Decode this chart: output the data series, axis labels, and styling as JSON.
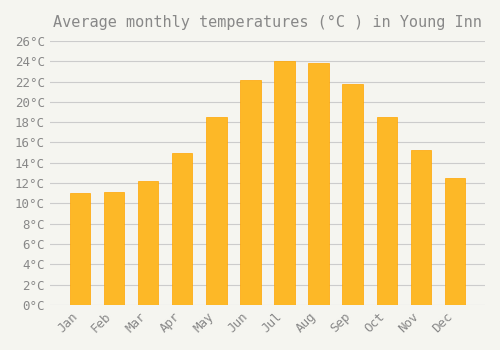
{
  "title": "Average monthly temperatures (°C ) in Young Inn",
  "months": [
    "Jan",
    "Feb",
    "Mar",
    "Apr",
    "May",
    "Jun",
    "Jul",
    "Aug",
    "Sep",
    "Oct",
    "Nov",
    "Dec"
  ],
  "values": [
    11.0,
    11.1,
    12.2,
    15.0,
    18.5,
    22.2,
    24.0,
    23.8,
    21.8,
    18.5,
    15.3,
    12.5
  ],
  "bar_color": "#FDB827",
  "bar_edge_color": "#FFA500",
  "background_color": "#F5F5F0",
  "grid_color": "#CCCCCC",
  "text_color": "#888888",
  "ylim": [
    0,
    26
  ],
  "ytick_step": 2,
  "title_fontsize": 11,
  "tick_fontsize": 9
}
